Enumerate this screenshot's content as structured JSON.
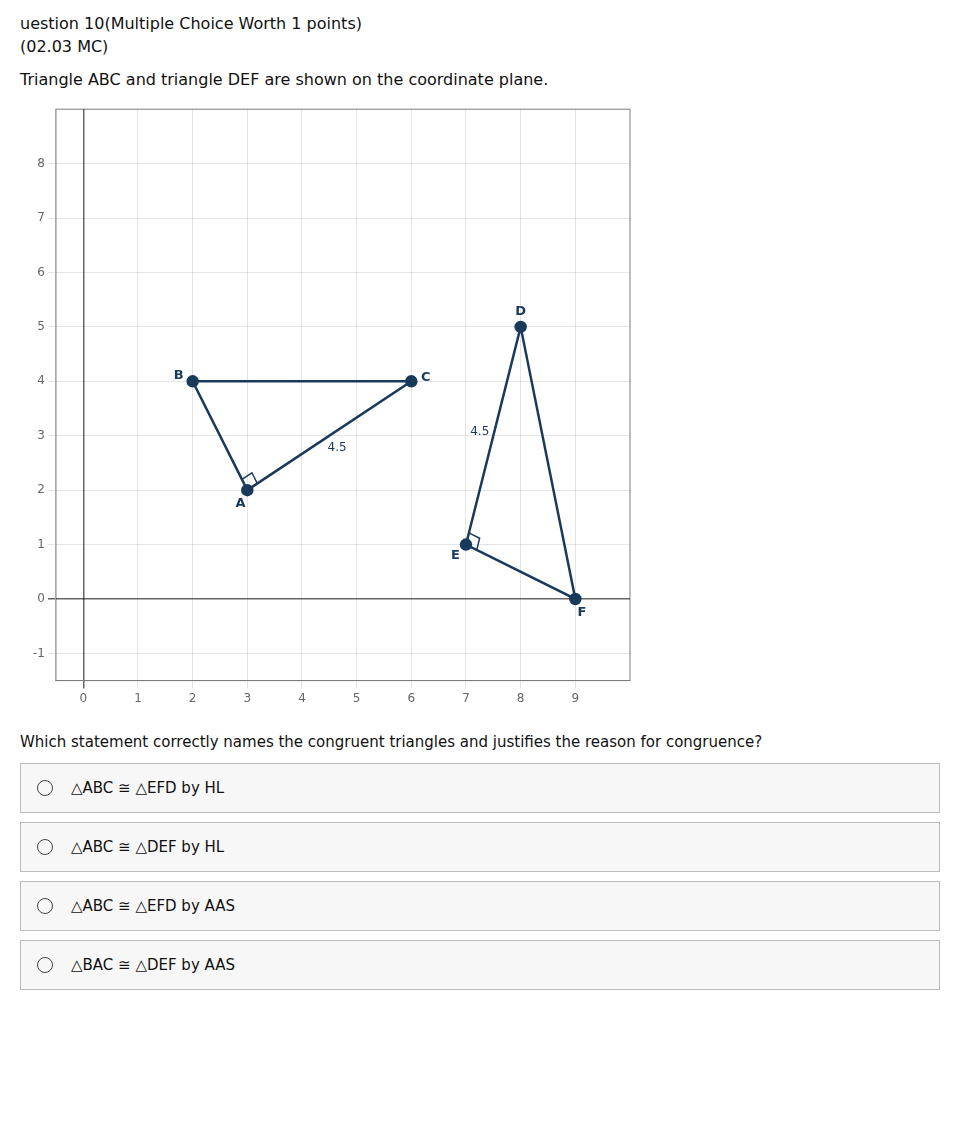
{
  "chart_data": {
    "type": "scatter",
    "title": "uestion 10(Multiple Choice Worth 1 points)",
    "subtitle": "(02.03 MC)",
    "problem_text": "Triangle ABC and triangle DEF are shown on the coordinate plane.",
    "question_text": "Which statement correctly names the congruent triangles and justifies the reason for congruence?",
    "choices": [
      "△ABC ≅ △EFD by HL",
      "△ABC ≅ △DEF by HL",
      "△ABC ≅ △EFD by AAS",
      "△BAC ≅ △DEF by AAS"
    ],
    "series": [
      {
        "type": "polygon",
        "point_labels": [
          "A",
          "B",
          "C"
        ],
        "x": [
          3,
          2,
          6
        ],
        "values": [
          2,
          4,
          4
        ],
        "side_labels": [
          null,
          null,
          "4.5"
        ],
        "right_angle": "A",
        "color": "#1a3a5c"
      },
      {
        "type": "polygon",
        "point_labels": [
          "D",
          "E",
          "F"
        ],
        "x": [
          8,
          7,
          9
        ],
        "values": [
          5,
          1,
          0
        ],
        "side_labels": [
          "4.5",
          null,
          null
        ],
        "right_angle": "E",
        "color": "#1a3a5c"
      }
    ],
    "xlim": [
      -0.5,
      10
    ],
    "ylim": [
      -1.5,
      9
    ],
    "xticks": [
      0,
      1,
      2,
      3,
      4,
      5,
      6,
      7,
      8,
      9
    ],
    "yticks": [
      -1,
      0,
      1,
      2,
      3,
      4,
      5,
      6,
      7,
      8
    ],
    "grid": true
  }
}
